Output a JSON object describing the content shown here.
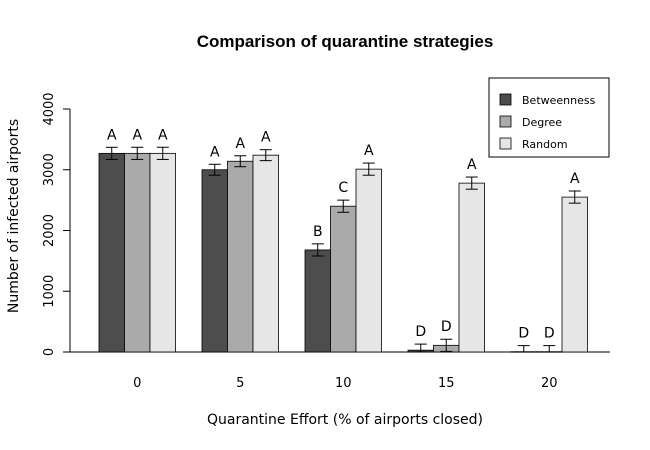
{
  "chart_data": {
    "type": "bar",
    "title": "Comparison of quarantine strategies",
    "xlabel": "Quarantine Effort (% of airports closed)",
    "ylabel": "Number of infected airports",
    "categories": [
      "0",
      "5",
      "10",
      "15",
      "20"
    ],
    "ylim": [
      0,
      4000
    ],
    "yticks": [
      0,
      1000,
      2000,
      3000,
      4000
    ],
    "grid": false,
    "legend_position": "top-right",
    "series": [
      {
        "name": "Betweenness",
        "color": "#4d4d4d",
        "values": [
          3270,
          3000,
          1680,
          30,
          5
        ],
        "errors": [
          100,
          90,
          100,
          100,
          100
        ],
        "labels": [
          "A",
          "A",
          "B",
          "D",
          "D"
        ]
      },
      {
        "name": "Degree",
        "color": "#aaaaaa",
        "values": [
          3270,
          3140,
          2400,
          110,
          5
        ],
        "errors": [
          100,
          90,
          100,
          100,
          100
        ],
        "labels": [
          "A",
          "A",
          "C",
          "D",
          "D"
        ]
      },
      {
        "name": "Random",
        "color": "#e6e6e6",
        "values": [
          3270,
          3240,
          3010,
          2780,
          2550
        ],
        "errors": [
          100,
          90,
          100,
          100,
          100
        ],
        "labels": [
          "A",
          "A",
          "A",
          "A",
          "A"
        ]
      }
    ]
  }
}
